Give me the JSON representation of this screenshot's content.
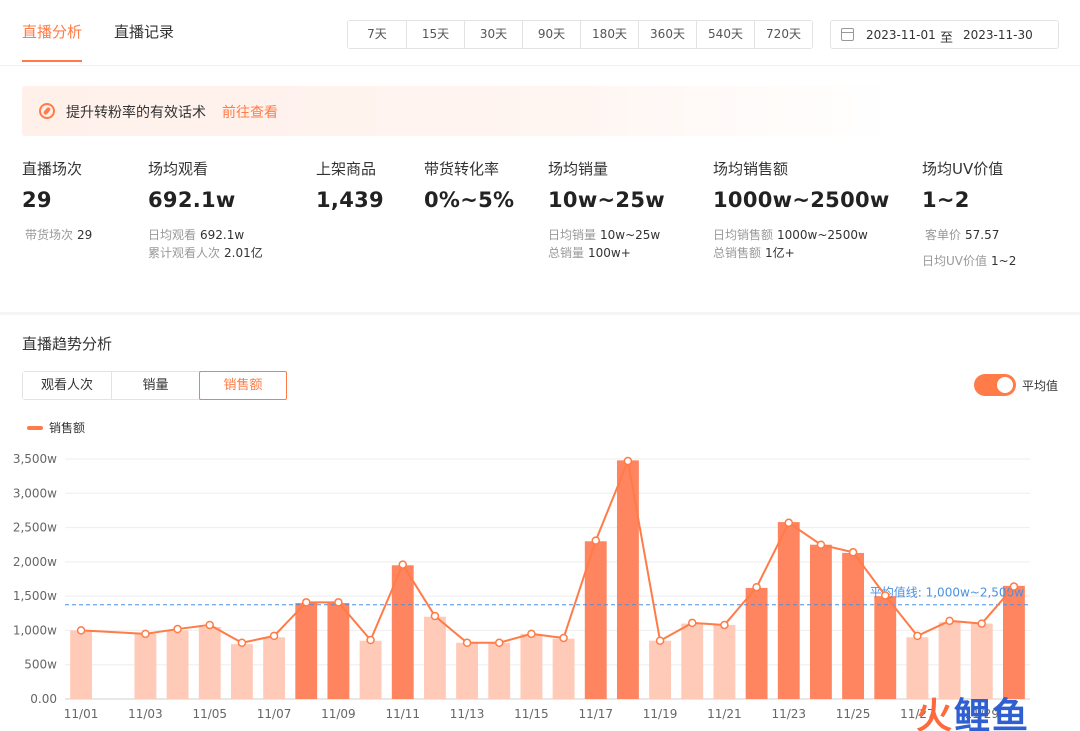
{
  "tabs": [
    {
      "label": "直播分析",
      "active": true
    },
    {
      "label": "直播记录",
      "active": false
    }
  ],
  "date_ranges": [
    "7天",
    "15天",
    "30天",
    "90天",
    "180天",
    "360天",
    "540天",
    "720天"
  ],
  "date_picker": {
    "start": "2023-11-01",
    "separator": "至",
    "end": "2023-11-30"
  },
  "banner": {
    "text": "提升转粉率的有效话术",
    "link": "前往查看"
  },
  "metrics": [
    {
      "label": "直播场次",
      "value": "29",
      "subs": [
        {
          "label": "带货场次",
          "value": "29"
        }
      ]
    },
    {
      "label": "场均观看",
      "value": "692.1w",
      "subs": [
        {
          "label": "日均观看",
          "value": "692.1w"
        },
        {
          "label": "累计观看人次",
          "value": "2.01亿"
        }
      ]
    },
    {
      "label": "上架商品",
      "value": "1,439",
      "subs": []
    },
    {
      "label": "带货转化率",
      "value": "0%~5%",
      "subs": []
    },
    {
      "label": "场均销量",
      "value": "10w~25w",
      "subs": [
        {
          "label": "日均销量",
          "value": "10w~25w"
        },
        {
          "label": "总销量",
          "value": "100w+"
        }
      ]
    },
    {
      "label": "场均销售额",
      "value": "1000w~2500w",
      "subs": [
        {
          "label": "日均销售额",
          "value": "1000w~2500w"
        },
        {
          "label": "总销售额",
          "value": "1亿+"
        }
      ]
    },
    {
      "label": "场均UV价值",
      "value": "1~2",
      "subs": [
        {
          "label": "客单价",
          "value": "57.57"
        },
        {
          "label": "日均UV价值",
          "value": "1~2"
        }
      ]
    }
  ],
  "trend": {
    "title": "直播趋势分析",
    "segments": [
      {
        "label": "观看人次",
        "active": false
      },
      {
        "label": "销量",
        "active": false
      },
      {
        "label": "销售额",
        "active": true
      }
    ],
    "toggle_label": "平均值",
    "toggle_on": true
  },
  "watermark": {
    "part1": "火",
    "part2": "鲤鱼"
  },
  "colors": {
    "accent": "#ff7b47",
    "bar_strong": "#ff8460",
    "bar_light": "#ffcbb8",
    "avg_line": "#4a90e2"
  },
  "chart_data": {
    "type": "bar",
    "title": "",
    "legend": [
      {
        "name": "销售额",
        "position": "top-left"
      }
    ],
    "ylim": [
      0,
      3500
    ],
    "yticks": [
      0,
      500,
      1000,
      1500,
      2000,
      2500,
      3000,
      3500
    ],
    "ytick_labels": [
      "0.00",
      "500w",
      "1,000w",
      "1,500w",
      "2,000w",
      "2,500w",
      "3,000w",
      "3,500w"
    ],
    "grid": true,
    "categories": [
      "11/01",
      "11/02",
      "11/03",
      "11/04",
      "11/05",
      "11/06",
      "11/07",
      "11/08",
      "11/09",
      "11/10",
      "11/11",
      "11/12",
      "11/13",
      "11/14",
      "11/15",
      "11/16",
      "11/17",
      "11/18",
      "11/19",
      "11/20",
      "11/21",
      "11/22",
      "11/23",
      "11/24",
      "11/25",
      "11/26",
      "11/27",
      "11/28",
      "11/29",
      "11/30"
    ],
    "shown_tick_labels": [
      "11/01",
      "11/03",
      "11/05",
      "11/07",
      "11/09",
      "11/11",
      "11/13",
      "11/15",
      "11/17",
      "11/19",
      "11/21",
      "11/23",
      "11/25",
      "11/27",
      "11/29"
    ],
    "series": [
      {
        "name": "销售额",
        "bars": [
          1000,
          null,
          950,
          1000,
          1050,
          800,
          900,
          1400,
          1400,
          850,
          1950,
          1200,
          820,
          820,
          950,
          880,
          2300,
          3480,
          850,
          1100,
          1080,
          1620,
          2580,
          2250,
          2130,
          1500,
          900,
          1120,
          1100,
          1650
        ],
        "line": [
          1000,
          null,
          950,
          1020,
          1080,
          820,
          920,
          1410,
          1410,
          860,
          1960,
          1210,
          820,
          820,
          950,
          890,
          2310,
          3470,
          850,
          1110,
          1080,
          1630,
          2570,
          2250,
          2140,
          1510,
          920,
          1140,
          1100,
          1640
        ],
        "highlight": [
          false,
          false,
          false,
          false,
          false,
          false,
          false,
          true,
          true,
          false,
          true,
          false,
          false,
          false,
          false,
          false,
          true,
          true,
          false,
          false,
          false,
          true,
          true,
          true,
          true,
          true,
          false,
          false,
          false,
          true
        ]
      }
    ],
    "average_line": {
      "value": 1375,
      "label": "平均值线: 1,000w~2,500w"
    }
  }
}
